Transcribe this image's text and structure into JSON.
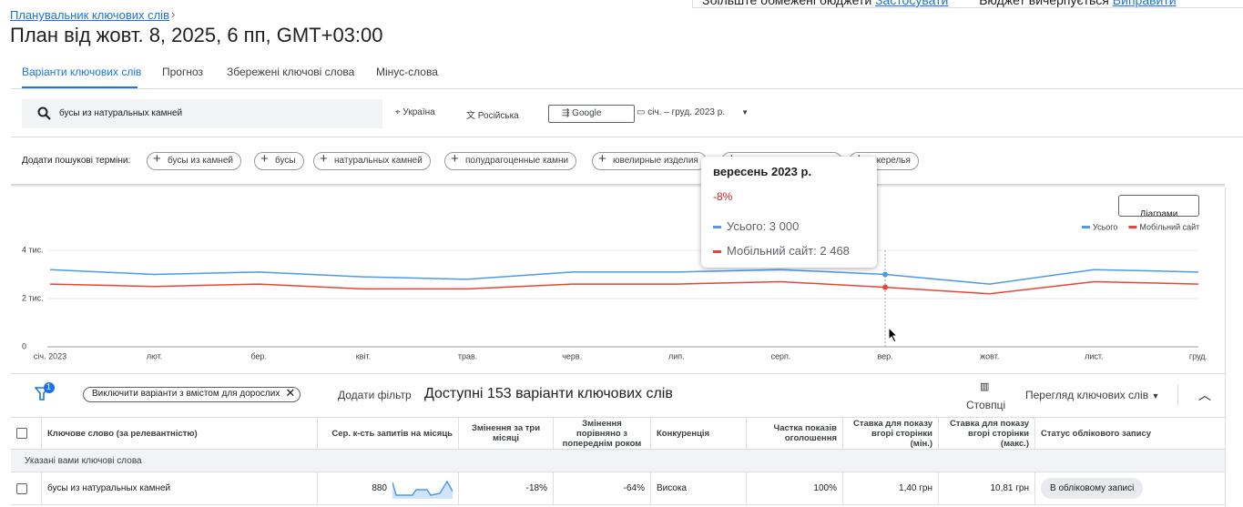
{
  "notifications": [
    {
      "text": "Збільште обмежені бюджети",
      "action": "Застосувати"
    },
    {
      "text": "Бюджет вичерпується",
      "action": "Виправити"
    }
  ],
  "header": {
    "breadcrumb": "Планувальник ключових слів",
    "title": "План від жовт. 8, 2025, 6 пп, GMT+03:00"
  },
  "tabs": [
    "Варіанти ключових слів",
    "Прогноз",
    "Збережені ключові слова",
    "Мінус-слова"
  ],
  "search": {
    "query": "бусы из натуральных камней",
    "location": "Україна",
    "language": "Російська",
    "network": "Google",
    "date_range": "січ. – груд. 2023 р."
  },
  "add_terms": {
    "label": "Додати пошукові терміни:",
    "chips": [
      "бусы из камней",
      "бусы",
      "натуральных камней",
      "полудрагоценные камни",
      "ювелирные изделия",
      "ожерелья"
    ]
  },
  "chart_data": {
    "type": "line",
    "chart_button": "Діаграми",
    "categories": [
      "січ. 2023",
      "лют.",
      "бер.",
      "квіт.",
      "трав.",
      "черв.",
      "лип.",
      "серп.",
      "вер.",
      "жовт.",
      "лист.",
      "груд."
    ],
    "series": [
      {
        "name": "Усього",
        "color": "#4b9be8",
        "values": [
          3200,
          3000,
          3100,
          2900,
          2800,
          3100,
          3100,
          3200,
          3000,
          2600,
          3200,
          3100
        ]
      },
      {
        "name": "Мобільний сайт",
        "color": "#ea4335",
        "values": [
          2600,
          2500,
          2600,
          2400,
          2400,
          2600,
          2600,
          2700,
          2468,
          2200,
          2700,
          2600
        ]
      }
    ],
    "ylim": [
      0,
      4000
    ],
    "yticks": [
      0,
      {
        "value": 2000,
        "label": "2 тис."
      },
      {
        "value": 4000,
        "label": "4 тис."
      }
    ],
    "grid": true,
    "legend": "top-right",
    "tooltip": {
      "title": "вересень 2023 р.",
      "change": "-8%",
      "lines": [
        "Усього: 3 000",
        "Мобільний сайт: 2 468"
      ]
    }
  },
  "toolbar": {
    "filter_count": "1",
    "filter_chip": "Виключити варіанти з вмістом для дорослих",
    "add_filter": "Додати фільтр",
    "results": "Доступні 153 варіанти ключових слів",
    "columns": "Стовпці",
    "view": "Перегляд ключових слів"
  },
  "table": {
    "columns": [
      "Ключове слово (за релевантністю)",
      "Сер. к-сть запитів на місяць",
      "Змінення за три місяці",
      "Змінення порівняно з попереднім роком",
      "Конкуренція",
      "Частка показів оголошення",
      "Ставка для показу вгорі сторінки (мін.)",
      "Ставка для показу вгорі сторінки (макс.)",
      "Статус облікового запису"
    ],
    "group": "Указані вами ключові слова",
    "rows": [
      [
        "бусы из натуральных камней",
        "880",
        "-18%",
        "-64%",
        "Висока",
        "100%",
        "1,40 грн",
        "10,81 грн",
        "В обліковому записі"
      ]
    ]
  }
}
